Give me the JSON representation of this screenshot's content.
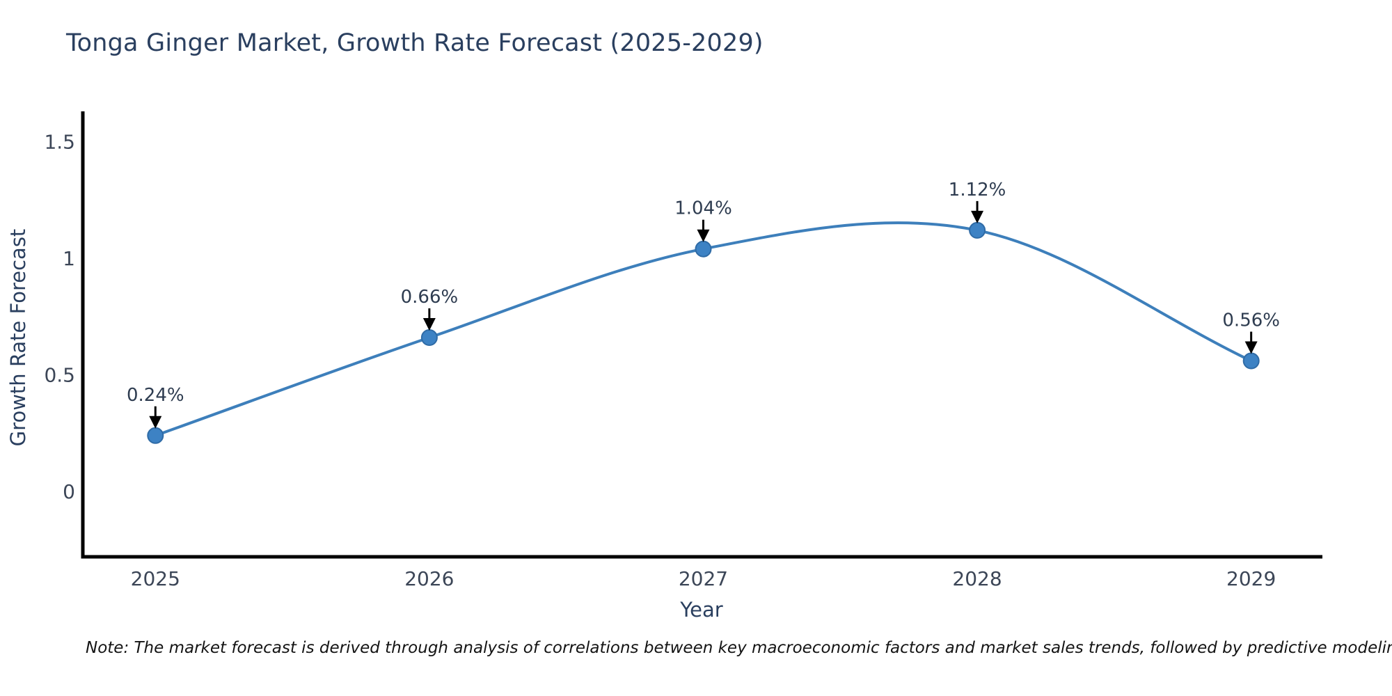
{
  "title": "Tonga Ginger Market, Growth Rate Forecast (2025-2029)",
  "note": "Note: The market forecast is derived through analysis of correlations between key macroeconomic factors and market sales trends, followed by predictive modeling to project future sales",
  "colors": {
    "line": "#3d7fbb",
    "marker_fill": "#3d82c4",
    "marker_edge": "#2f6ba6",
    "axis_line": "#000000",
    "title_text": "#2a3f5f",
    "tick_text": "#3c4657",
    "axis_title_text": "#2a3f5f",
    "annotation_text": "#2e3c50",
    "arrow": "#000000",
    "note_text": "#141414",
    "background": "#ffffff"
  },
  "chart_data": {
    "type": "line",
    "line_shape": "spline",
    "title": "Tonga Ginger Market, Growth Rate Forecast (2025-2029)",
    "xlabel": "Year",
    "ylabel": "Growth Rate Forecast",
    "x": [
      2025,
      2026,
      2027,
      2028,
      2029
    ],
    "series": [
      {
        "name": "Growth Rate Forecast",
        "values": [
          0.24,
          0.66,
          1.04,
          1.12,
          0.56
        ]
      }
    ],
    "annotations": [
      "0.24%",
      "0.66%",
      "1.04%",
      "1.12%",
      "0.56%"
    ],
    "xticks": [
      2025,
      2026,
      2027,
      2028,
      2029
    ],
    "xtick_labels": [
      "2025",
      "2026",
      "2027",
      "2028",
      "2029"
    ],
    "yticks": [
      0,
      0.5,
      1,
      1.5
    ],
    "ytick_labels": [
      "0",
      "0.5",
      "1",
      "1.5"
    ],
    "xlim": [
      2024.73,
      2029.26
    ],
    "ylim": [
      -0.28,
      1.63
    ],
    "grid": false,
    "legend": false
  }
}
